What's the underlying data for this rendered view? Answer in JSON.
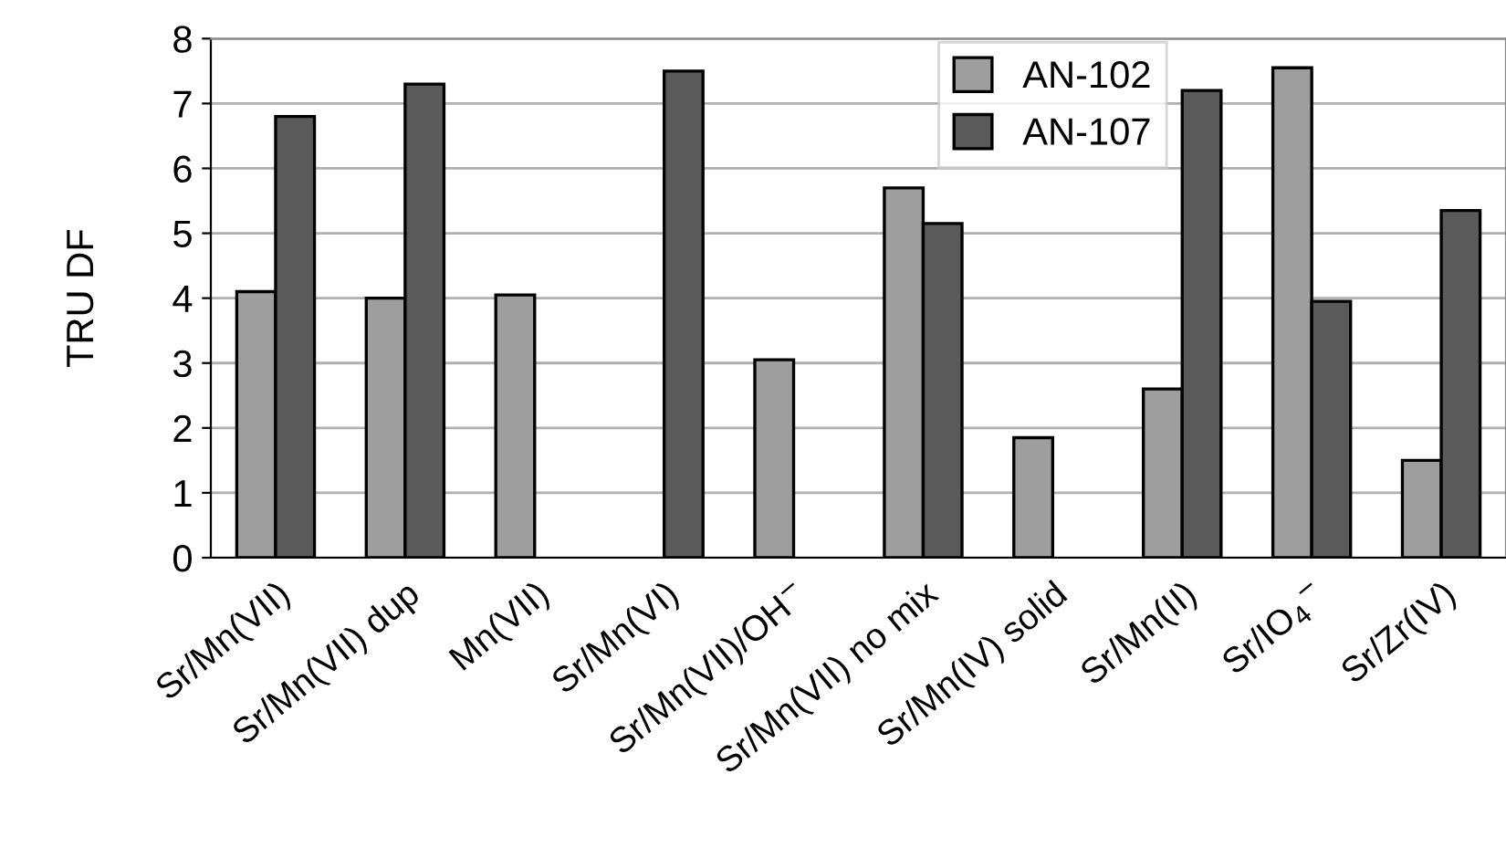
{
  "chart_data": {
    "type": "bar",
    "ylabel": "TRU DF",
    "categories": [
      "Sr/Mn(VII)",
      "Sr/Mn(VII) dup",
      "Mn(VII)",
      "Sr/Mn(VI)",
      "Sr/Mn(VII)/OH$^{−}$",
      "Sr/Mn(VII) no mix",
      "Sr/Mn(IV) solid",
      "Sr/Mn(II)",
      "Sr/IO$_{4}$$^{−}$",
      "Sr/Zr(IV)"
    ],
    "series": [
      {
        "name": "AN-102",
        "color": "#9e9e9e",
        "values": [
          4.1,
          4.0,
          4.05,
          null,
          3.05,
          5.7,
          1.85,
          2.6,
          7.55,
          1.5
        ]
      },
      {
        "name": "AN-107",
        "color": "#5a5a5a",
        "values": [
          6.8,
          7.3,
          null,
          7.5,
          null,
          5.15,
          null,
          7.2,
          3.95,
          5.35
        ]
      }
    ],
    "ylim": [
      0,
      8
    ],
    "yticks": [
      0,
      1,
      2,
      3,
      4,
      5,
      6,
      7,
      8
    ],
    "grid": "y",
    "legend": "top"
  }
}
